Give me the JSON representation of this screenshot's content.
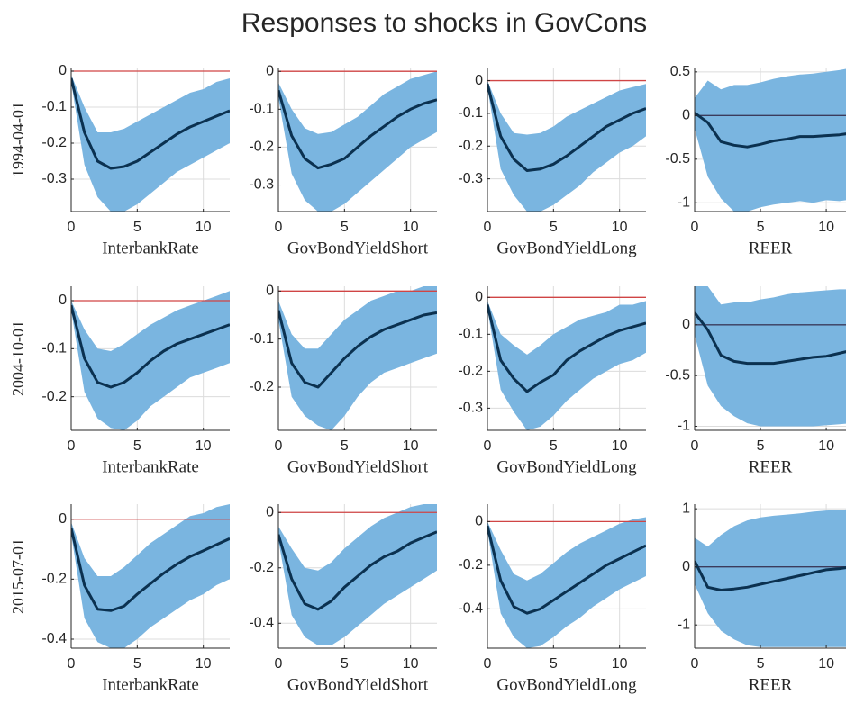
{
  "title": "Responses to shocks in GovCons",
  "chart_data": [
    {
      "type": "line",
      "ylabel": "1994-04-01",
      "xlabel": "InterbankRate",
      "x": [
        0,
        1,
        2,
        3,
        4,
        5,
        6,
        7,
        8,
        9,
        10,
        11,
        12
      ],
      "xlim": [
        0,
        12
      ],
      "xticks": [
        0,
        5,
        10
      ],
      "ylim": [
        -0.39,
        0.01
      ],
      "yticks": [
        -0.3,
        -0.2,
        -0.1,
        0
      ],
      "grid": true,
      "series": [
        {
          "color": "#0b3150",
          "values": [
            -0.02,
            -0.17,
            -0.25,
            -0.27,
            -0.265,
            -0.25,
            -0.225,
            -0.2,
            -0.175,
            -0.155,
            -0.14,
            -0.125,
            -0.11
          ]
        }
      ],
      "band": {
        "color": "#7ab5e0",
        "lower": [
          -0.03,
          -0.26,
          -0.35,
          -0.39,
          -0.39,
          -0.37,
          -0.34,
          -0.31,
          -0.28,
          -0.26,
          -0.24,
          -0.22,
          -0.2
        ],
        "upper": [
          -0.01,
          -0.1,
          -0.17,
          -0.17,
          -0.16,
          -0.14,
          -0.12,
          -0.1,
          -0.08,
          -0.06,
          -0.05,
          -0.03,
          -0.02
        ]
      },
      "hline": {
        "value": 0,
        "color": "#d04545"
      }
    },
    {
      "type": "line",
      "xlabel": "GovBondYieldShort",
      "x": [
        0,
        1,
        2,
        3,
        4,
        5,
        6,
        7,
        8,
        9,
        10,
        11,
        12
      ],
      "xlim": [
        0,
        12
      ],
      "xticks": [
        0,
        5,
        10
      ],
      "ylim": [
        -0.37,
        0.01
      ],
      "yticks": [
        -0.3,
        -0.2,
        -0.1,
        0
      ],
      "grid": true,
      "series": [
        {
          "color": "#0b3150",
          "values": [
            -0.05,
            -0.17,
            -0.23,
            -0.255,
            -0.245,
            -0.23,
            -0.2,
            -0.17,
            -0.145,
            -0.12,
            -0.1,
            -0.085,
            -0.075
          ]
        }
      ],
      "band": {
        "color": "#7ab5e0",
        "lower": [
          -0.07,
          -0.27,
          -0.34,
          -0.37,
          -0.37,
          -0.35,
          -0.32,
          -0.29,
          -0.26,
          -0.23,
          -0.2,
          -0.18,
          -0.16
        ],
        "upper": [
          -0.03,
          -0.1,
          -0.15,
          -0.165,
          -0.16,
          -0.14,
          -0.12,
          -0.09,
          -0.06,
          -0.04,
          -0.02,
          -0.01,
          0
        ]
      },
      "hline": {
        "value": 0,
        "color": "#d04545"
      }
    },
    {
      "type": "line",
      "xlabel": "GovBondYieldLong",
      "x": [
        0,
        1,
        2,
        3,
        4,
        5,
        6,
        7,
        8,
        9,
        10,
        11,
        12
      ],
      "xlim": [
        0,
        12
      ],
      "xticks": [
        0,
        5,
        10
      ],
      "ylim": [
        -0.4,
        0.04
      ],
      "yticks": [
        -0.3,
        -0.2,
        -0.1,
        0
      ],
      "grid": true,
      "series": [
        {
          "color": "#0b3150",
          "values": [
            -0.01,
            -0.17,
            -0.24,
            -0.275,
            -0.27,
            -0.255,
            -0.23,
            -0.2,
            -0.17,
            -0.14,
            -0.12,
            -0.1,
            -0.085
          ]
        }
      ],
      "band": {
        "color": "#7ab5e0",
        "lower": [
          -0.02,
          -0.27,
          -0.35,
          -0.4,
          -0.4,
          -0.38,
          -0.35,
          -0.32,
          -0.28,
          -0.25,
          -0.22,
          -0.2,
          -0.17
        ],
        "upper": [
          0,
          -0.1,
          -0.16,
          -0.165,
          -0.16,
          -0.14,
          -0.11,
          -0.09,
          -0.07,
          -0.05,
          -0.03,
          -0.02,
          -0.01
        ]
      },
      "hline": {
        "value": 0,
        "color": "#d04545"
      }
    },
    {
      "type": "line",
      "xlabel": "REER",
      "x": [
        0,
        1,
        2,
        3,
        4,
        5,
        6,
        7,
        8,
        9,
        10,
        11,
        12
      ],
      "xlim": [
        0,
        11.5
      ],
      "xticks": [
        0,
        5,
        10
      ],
      "ylim": [
        -1.1,
        0.55
      ],
      "yticks": [
        -1,
        -0.5,
        0,
        0.5
      ],
      "grid": true,
      "series": [
        {
          "color": "#0b3150",
          "values": [
            0.03,
            -0.08,
            -0.3,
            -0.34,
            -0.36,
            -0.33,
            -0.29,
            -0.27,
            -0.24,
            -0.24,
            -0.23,
            -0.22,
            -0.2
          ]
        }
      ],
      "band": {
        "color": "#7ab5e0",
        "lower": [
          -0.15,
          -0.7,
          -0.95,
          -1.1,
          -1.1,
          -1.05,
          -1.02,
          -1.0,
          -0.98,
          -1.0,
          -0.97,
          -0.98,
          -0.96
        ],
        "upper": [
          0.2,
          0.4,
          0.3,
          0.35,
          0.35,
          0.38,
          0.42,
          0.45,
          0.47,
          0.48,
          0.5,
          0.52,
          0.55
        ]
      },
      "hline": {
        "value": 0,
        "color": "#3b3b5c"
      }
    },
    {
      "type": "line",
      "ylabel": "2004-10-01",
      "xlabel": "InterbankRate",
      "x": [
        0,
        1,
        2,
        3,
        4,
        5,
        6,
        7,
        8,
        9,
        10,
        11,
        12
      ],
      "xlim": [
        0,
        12
      ],
      "xticks": [
        0,
        5,
        10
      ],
      "ylim": [
        -0.27,
        0.03
      ],
      "yticks": [
        -0.2,
        -0.1,
        0
      ],
      "grid": true,
      "series": [
        {
          "color": "#0b3150",
          "values": [
            -0.01,
            -0.12,
            -0.17,
            -0.18,
            -0.17,
            -0.15,
            -0.125,
            -0.105,
            -0.09,
            -0.08,
            -0.07,
            -0.06,
            -0.05
          ]
        }
      ],
      "band": {
        "color": "#7ab5e0",
        "lower": [
          -0.02,
          -0.19,
          -0.245,
          -0.265,
          -0.27,
          -0.25,
          -0.22,
          -0.2,
          -0.18,
          -0.16,
          -0.15,
          -0.14,
          -0.13
        ],
        "upper": [
          0,
          -0.06,
          -0.1,
          -0.105,
          -0.09,
          -0.07,
          -0.05,
          -0.035,
          -0.02,
          -0.01,
          0,
          0.01,
          0.02
        ]
      },
      "hline": {
        "value": 0,
        "color": "#d04545"
      }
    },
    {
      "type": "line",
      "xlabel": "GovBondYieldShort",
      "x": [
        0,
        1,
        2,
        3,
        4,
        5,
        6,
        7,
        8,
        9,
        10,
        11,
        12
      ],
      "xlim": [
        0,
        12
      ],
      "xticks": [
        0,
        5,
        10
      ],
      "ylim": [
        -0.29,
        0.01
      ],
      "yticks": [
        -0.2,
        -0.1,
        0
      ],
      "grid": true,
      "series": [
        {
          "color": "#0b3150",
          "values": [
            -0.04,
            -0.15,
            -0.19,
            -0.2,
            -0.17,
            -0.14,
            -0.115,
            -0.095,
            -0.08,
            -0.07,
            -0.06,
            -0.05,
            -0.045
          ]
        }
      ],
      "band": {
        "color": "#7ab5e0",
        "lower": [
          -0.06,
          -0.22,
          -0.26,
          -0.28,
          -0.29,
          -0.26,
          -0.22,
          -0.19,
          -0.17,
          -0.16,
          -0.15,
          -0.14,
          -0.13
        ],
        "upper": [
          -0.02,
          -0.09,
          -0.12,
          -0.12,
          -0.09,
          -0.06,
          -0.04,
          -0.02,
          -0.01,
          0,
          0,
          0.01,
          0.01
        ]
      },
      "hline": {
        "value": 0,
        "color": "#d04545"
      }
    },
    {
      "type": "line",
      "xlabel": "GovBondYieldLong",
      "x": [
        0,
        1,
        2,
        3,
        4,
        5,
        6,
        7,
        8,
        9,
        10,
        11,
        12
      ],
      "xlim": [
        0,
        12
      ],
      "xticks": [
        0,
        5,
        10
      ],
      "ylim": [
        -0.36,
        0.03
      ],
      "yticks": [
        -0.3,
        -0.2,
        -0.1,
        0
      ],
      "grid": true,
      "series": [
        {
          "color": "#0b3150",
          "values": [
            -0.02,
            -0.17,
            -0.22,
            -0.255,
            -0.23,
            -0.21,
            -0.17,
            -0.145,
            -0.125,
            -0.105,
            -0.09,
            -0.08,
            -0.07
          ]
        }
      ],
      "band": {
        "color": "#7ab5e0",
        "lower": [
          -0.03,
          -0.25,
          -0.31,
          -0.36,
          -0.35,
          -0.32,
          -0.28,
          -0.25,
          -0.22,
          -0.2,
          -0.18,
          -0.17,
          -0.15
        ],
        "upper": [
          -0.01,
          -0.1,
          -0.13,
          -0.155,
          -0.13,
          -0.1,
          -0.08,
          -0.06,
          -0.05,
          -0.04,
          -0.02,
          -0.02,
          -0.01
        ]
      },
      "hline": {
        "value": 0,
        "color": "#d04545"
      }
    },
    {
      "type": "line",
      "xlabel": "REER",
      "x": [
        0,
        1,
        2,
        3,
        4,
        5,
        6,
        7,
        8,
        9,
        10,
        11,
        12
      ],
      "xlim": [
        0,
        11.5
      ],
      "xticks": [
        0,
        5,
        10
      ],
      "ylim": [
        -1.04,
        0.38
      ],
      "yticks": [
        -1,
        -0.5,
        0
      ],
      "grid": true,
      "series": [
        {
          "color": "#0b3150",
          "values": [
            0.12,
            -0.05,
            -0.3,
            -0.36,
            -0.38,
            -0.38,
            -0.38,
            -0.36,
            -0.34,
            -0.32,
            -0.31,
            -0.28,
            -0.25
          ]
        }
      ],
      "band": {
        "color": "#7ab5e0",
        "lower": [
          -0.1,
          -0.6,
          -0.8,
          -0.9,
          -0.97,
          -1.0,
          -1.0,
          -1.0,
          -1.0,
          -1.0,
          -0.99,
          -0.98,
          -0.97
        ],
        "upper": [
          0.38,
          0.38,
          0.2,
          0.22,
          0.22,
          0.25,
          0.27,
          0.3,
          0.32,
          0.33,
          0.34,
          0.35,
          0.35
        ]
      },
      "hline": {
        "value": 0,
        "color": "#3b3b5c"
      }
    },
    {
      "type": "line",
      "ylabel": "2015-07-01",
      "xlabel": "InterbankRate",
      "x": [
        0,
        1,
        2,
        3,
        4,
        5,
        6,
        7,
        8,
        9,
        10,
        11,
        12
      ],
      "xlim": [
        0,
        12
      ],
      "xticks": [
        0,
        5,
        10
      ],
      "ylim": [
        -0.43,
        0.05
      ],
      "yticks": [
        -0.4,
        -0.2,
        0
      ],
      "grid": true,
      "series": [
        {
          "color": "#0b3150",
          "values": [
            -0.03,
            -0.22,
            -0.3,
            -0.305,
            -0.29,
            -0.25,
            -0.215,
            -0.18,
            -0.15,
            -0.125,
            -0.105,
            -0.085,
            -0.065
          ]
        }
      ],
      "band": {
        "color": "#7ab5e0",
        "lower": [
          -0.05,
          -0.33,
          -0.41,
          -0.43,
          -0.43,
          -0.4,
          -0.36,
          -0.33,
          -0.3,
          -0.27,
          -0.25,
          -0.22,
          -0.2
        ],
        "upper": [
          -0.01,
          -0.13,
          -0.19,
          -0.19,
          -0.16,
          -0.12,
          -0.08,
          -0.05,
          -0.02,
          0.01,
          0.02,
          0.04,
          0.05
        ]
      },
      "hline": {
        "value": 0,
        "color": "#d04545"
      }
    },
    {
      "type": "line",
      "xlabel": "GovBondYieldShort",
      "x": [
        0,
        1,
        2,
        3,
        4,
        5,
        6,
        7,
        8,
        9,
        10,
        11,
        12
      ],
      "xlim": [
        0,
        12
      ],
      "xticks": [
        0,
        5,
        10
      ],
      "ylim": [
        -0.49,
        0.03
      ],
      "yticks": [
        -0.4,
        -0.2,
        0
      ],
      "grid": true,
      "series": [
        {
          "color": "#0b3150",
          "values": [
            -0.08,
            -0.24,
            -0.33,
            -0.35,
            -0.32,
            -0.27,
            -0.23,
            -0.19,
            -0.16,
            -0.14,
            -0.11,
            -0.09,
            -0.07
          ]
        }
      ],
      "band": {
        "color": "#7ab5e0",
        "lower": [
          -0.1,
          -0.37,
          -0.45,
          -0.48,
          -0.48,
          -0.45,
          -0.41,
          -0.37,
          -0.33,
          -0.3,
          -0.27,
          -0.24,
          -0.21
        ],
        "upper": [
          -0.05,
          -0.13,
          -0.2,
          -0.21,
          -0.18,
          -0.13,
          -0.09,
          -0.05,
          -0.02,
          0,
          0.02,
          0.03,
          0.03
        ]
      },
      "hline": {
        "value": 0,
        "color": "#d04545"
      }
    },
    {
      "type": "line",
      "xlabel": "GovBondYieldLong",
      "x": [
        0,
        1,
        2,
        3,
        4,
        5,
        6,
        7,
        8,
        9,
        10,
        11,
        12
      ],
      "xlim": [
        0,
        12
      ],
      "xticks": [
        0,
        5,
        10
      ],
      "ylim": [
        -0.58,
        0.08
      ],
      "yticks": [
        -0.4,
        -0.2,
        0
      ],
      "grid": true,
      "series": [
        {
          "color": "#0b3150",
          "values": [
            -0.02,
            -0.27,
            -0.39,
            -0.42,
            -0.4,
            -0.36,
            -0.32,
            -0.28,
            -0.24,
            -0.2,
            -0.17,
            -0.14,
            -0.11
          ]
        }
      ],
      "band": {
        "color": "#7ab5e0",
        "lower": [
          -0.04,
          -0.42,
          -0.53,
          -0.58,
          -0.57,
          -0.53,
          -0.48,
          -0.44,
          -0.39,
          -0.35,
          -0.31,
          -0.28,
          -0.25
        ],
        "upper": [
          0,
          -0.13,
          -0.24,
          -0.27,
          -0.24,
          -0.19,
          -0.14,
          -0.1,
          -0.07,
          -0.04,
          -0.01,
          0.01,
          0.02
        ]
      },
      "hline": {
        "value": 0,
        "color": "#d04545"
      }
    },
    {
      "type": "line",
      "xlabel": "REER",
      "x": [
        0,
        1,
        2,
        3,
        4,
        5,
        6,
        7,
        8,
        9,
        10,
        11,
        12
      ],
      "xlim": [
        0,
        11.5
      ],
      "xticks": [
        0,
        5,
        10
      ],
      "ylim": [
        -1.4,
        1.08
      ],
      "yticks": [
        -1,
        0,
        1
      ],
      "grid": true,
      "series": [
        {
          "color": "#0b3150",
          "values": [
            0.1,
            -0.35,
            -0.4,
            -0.38,
            -0.35,
            -0.3,
            -0.25,
            -0.2,
            -0.15,
            -0.1,
            -0.05,
            -0.03,
            0
          ]
        }
      ],
      "band": {
        "color": "#7ab5e0",
        "lower": [
          -0.3,
          -0.8,
          -1.1,
          -1.25,
          -1.35,
          -1.38,
          -1.38,
          -1.38,
          -1.38,
          -1.38,
          -1.38,
          -1.38,
          -1.38
        ],
        "upper": [
          0.5,
          0.35,
          0.55,
          0.7,
          0.8,
          0.85,
          0.88,
          0.9,
          0.92,
          0.95,
          0.97,
          0.98,
          1.0
        ]
      },
      "hline": {
        "value": 0,
        "color": "#3b3b5c"
      }
    }
  ]
}
